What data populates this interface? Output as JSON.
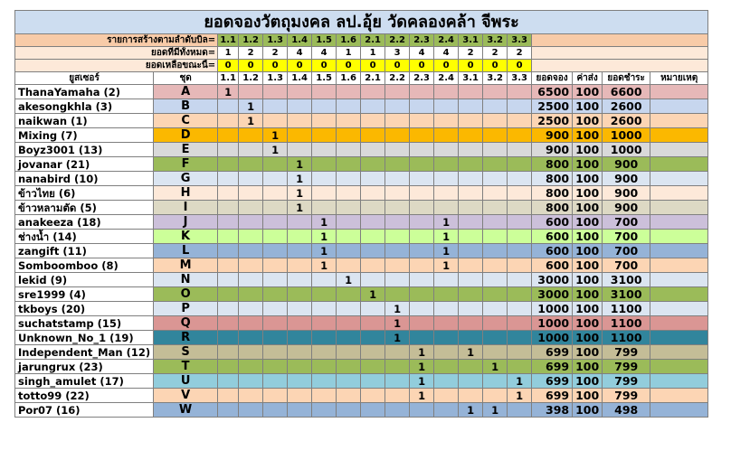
{
  "title": "ยอดจองวัตถุมงคล ลป.อุ้ย วัดคลองคล้า จีพระ",
  "labels": {
    "row_order": "รายการสร้างตามลำดับบิล=",
    "row_total": "ยอดที่มีทั้งหมด=",
    "row_left": "ยอดเหลือขณะนี้=",
    "user": "ยูสเซอร์",
    "set": "ชุด",
    "booking": "ยอดจอง",
    "shipping": "ค่าส่ง",
    "paid": "ยอดชำระ",
    "note": "หมายเหตุ"
  },
  "items": [
    "1.1",
    "1.2",
    "1.3",
    "1.4",
    "1.5",
    "1.6",
    "2.1",
    "2.2",
    "2.3",
    "2.4",
    "3.1",
    "3.2",
    "3.3"
  ],
  "totals": [
    "1",
    "2",
    "2",
    "4",
    "4",
    "1",
    "1",
    "3",
    "4",
    "4",
    "2",
    "2",
    "2"
  ],
  "remaining": [
    "0",
    "0",
    "0",
    "0",
    "0",
    "0",
    "0",
    "0",
    "0",
    "0",
    "0",
    "0",
    "0"
  ],
  "rows": [
    {
      "user": "ThanaYamaha  (2)",
      "set": "A",
      "color": "#e6b8b8",
      "qty": {
        "1.1": "1"
      },
      "booking": "6500",
      "shipping": "100",
      "paid": "6600"
    },
    {
      "user": "akesongkhla  (3)",
      "set": "B",
      "color": "#c7d6ee",
      "qty": {
        "1.2": "1"
      },
      "booking": "2500",
      "shipping": "100",
      "paid": "2600"
    },
    {
      "user": "naikwan  (1)",
      "set": "C",
      "color": "#fcd5b4",
      "qty": {
        "1.2": "1"
      },
      "booking": "2500",
      "shipping": "100",
      "paid": "2600"
    },
    {
      "user": "Mixing  (7)",
      "set": "D",
      "color": "#fbb800",
      "qty": {
        "1.3": "1"
      },
      "booking": "900",
      "shipping": "100",
      "paid": "1000"
    },
    {
      "user": "Boyz3001  (13)",
      "set": "E",
      "color": "#d9d9d9",
      "qty": {
        "1.3": "1"
      },
      "booking": "900",
      "shipping": "100",
      "paid": "1000"
    },
    {
      "user": " jovanar  (21)",
      "set": "F",
      "color": "#9bbb59",
      "qty": {
        "1.4": "1"
      },
      "booking": "800",
      "shipping": "100",
      "paid": "900"
    },
    {
      "user": "nanabird  (10)",
      "set": "G",
      "color": "#dbe5f1",
      "qty": {
        "1.4": "1"
      },
      "booking": "800",
      "shipping": "100",
      "paid": "900"
    },
    {
      "user": "ข้าวไทย  (6)",
      "set": "H",
      "color": "#fde9d9",
      "qty": {
        "1.4": "1"
      },
      "booking": "800",
      "shipping": "100",
      "paid": "900"
    },
    {
      "user": "ข้าวหลามตัด  (5)",
      "set": "I",
      "color": "#ddd9c4",
      "qty": {
        "1.4": "1"
      },
      "booking": "800",
      "shipping": "100",
      "paid": "900"
    },
    {
      "user": "anakeeza  (18)",
      "set": "J",
      "color": "#ccc0da",
      "qty": {
        "1.5": "1",
        "2.4": "1"
      },
      "booking": "600",
      "shipping": "100",
      "paid": "700"
    },
    {
      "user": "ช่างน้ำ  (14)",
      "set": "K",
      "color": "#ccff99",
      "qty": {
        "1.5": "1",
        "2.4": "1"
      },
      "booking": "600",
      "shipping": "100",
      "paid": "700"
    },
    {
      "user": "zangift (11)",
      "set": "L",
      "color": "#95b3d7",
      "qty": {
        "1.5": "1",
        "2.4": "1"
      },
      "booking": "600",
      "shipping": "100",
      "paid": "700"
    },
    {
      "user": "Somboomboo (8)",
      "set": "M",
      "color": "#fcd5b4",
      "qty": {
        "1.5": "1",
        "2.4": "1"
      },
      "booking": "600",
      "shipping": "100",
      "paid": "700"
    },
    {
      "user": "lekid  (9)",
      "set": "N",
      "color": "#dbe5f1",
      "qty": {
        "1.6": "1"
      },
      "booking": "3000",
      "shipping": "100",
      "paid": "3100"
    },
    {
      "user": "sre1999 (4)",
      "set": "O",
      "color": "#9bbb59",
      "qty": {
        "2.1": "1"
      },
      "booking": "3000",
      "shipping": "100",
      "paid": "3100"
    },
    {
      "user": "tkboys (20)",
      "set": "P",
      "color": "#dbe5f1",
      "qty": {
        "2.2": "1"
      },
      "booking": "1000",
      "shipping": "100",
      "paid": "1100"
    },
    {
      "user": "suchatstamp (15)",
      "set": "Q",
      "color": "#da9694",
      "qty": {
        "2.2": "1"
      },
      "booking": "1000",
      "shipping": "100",
      "paid": "1100"
    },
    {
      "user": "Unknown_No_1 (19)",
      "set": "R",
      "color": "#31859c",
      "qty": {
        "2.2": "1"
      },
      "booking": "1000",
      "shipping": "100",
      "paid": "1100"
    },
    {
      "user": "Independent_Man (12)",
      "set": "S",
      "color": "#c4bd97",
      "qty": {
        "2.3": "1",
        "3.1": "1"
      },
      "booking": "699",
      "shipping": "100",
      "paid": "799"
    },
    {
      "user": "jarungrux  (23)",
      "set": "T",
      "color": "#9bbb59",
      "qty": {
        "2.3": "1",
        "3.2": "1"
      },
      "booking": "699",
      "shipping": "100",
      "paid": "799"
    },
    {
      "user": "singh_amulet (17)",
      "set": "U",
      "color": "#92cddc",
      "qty": {
        "2.3": "1",
        "3.3": "1"
      },
      "booking": "699",
      "shipping": "100",
      "paid": "799"
    },
    {
      "user": "totto99  (22)",
      "set": "V",
      "color": "#fcd5b4",
      "qty": {
        "2.3": "1",
        "3.3": "1"
      },
      "booking": "699",
      "shipping": "100",
      "paid": "799"
    },
    {
      "user": "Por07 (16)",
      "set": "W",
      "color": "#95b3d7",
      "qty": {
        "3.1": "1",
        "3.2": "1"
      },
      "booking": "398",
      "shipping": "100",
      "paid": "498"
    }
  ]
}
